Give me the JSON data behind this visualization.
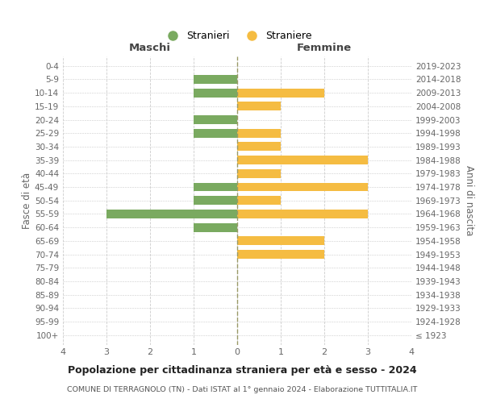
{
  "age_groups": [
    "100+",
    "95-99",
    "90-94",
    "85-89",
    "80-84",
    "75-79",
    "70-74",
    "65-69",
    "60-64",
    "55-59",
    "50-54",
    "45-49",
    "40-44",
    "35-39",
    "30-34",
    "25-29",
    "20-24",
    "15-19",
    "10-14",
    "5-9",
    "0-4"
  ],
  "birth_years": [
    "≤ 1923",
    "1924-1928",
    "1929-1933",
    "1934-1938",
    "1939-1943",
    "1944-1948",
    "1949-1953",
    "1954-1958",
    "1959-1963",
    "1964-1968",
    "1969-1973",
    "1974-1978",
    "1979-1983",
    "1984-1988",
    "1989-1993",
    "1994-1998",
    "1999-2003",
    "2004-2008",
    "2009-2013",
    "2014-2018",
    "2019-2023"
  ],
  "males": [
    0,
    0,
    0,
    0,
    0,
    0,
    0,
    0,
    1,
    3,
    1,
    1,
    0,
    0,
    0,
    1,
    1,
    0,
    1,
    1,
    0
  ],
  "females": [
    0,
    0,
    0,
    0,
    0,
    0,
    2,
    2,
    0,
    3,
    1,
    3,
    1,
    3,
    1,
    1,
    0,
    1,
    2,
    0,
    0
  ],
  "male_color": "#7aaa60",
  "female_color": "#f5bc42",
  "background_color": "#ffffff",
  "grid_color": "#cccccc",
  "title": "Popolazione per cittadinanza straniera per età e sesso - 2024",
  "subtitle": "COMUNE DI TERRAGNOLO (TN) - Dati ISTAT al 1° gennaio 2024 - Elaborazione TUTTITALIA.IT",
  "xlabel_left": "Maschi",
  "xlabel_right": "Femmine",
  "ylabel_left": "Fasce di età",
  "ylabel_right": "Anni di nascita",
  "legend_male": "Stranieri",
  "legend_female": "Straniere",
  "xlim": 4,
  "bar_height": 0.65
}
